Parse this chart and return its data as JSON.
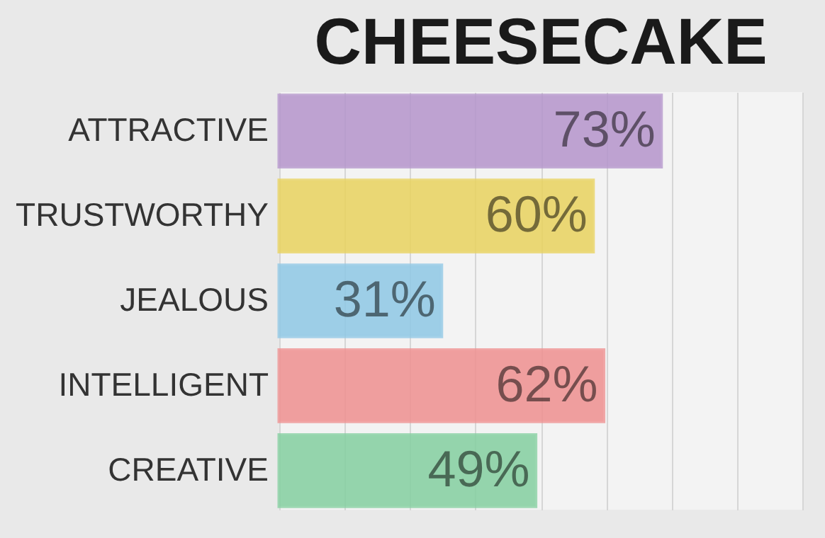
{
  "chart_data": {
    "type": "bar",
    "orientation": "horizontal",
    "title": "CHEESECAKE",
    "categories": [
      "ATTRACTIVE",
      "TRUSTWORTHY",
      "JEALOUS",
      "INTELLIGENT",
      "CREATIVE"
    ],
    "values": [
      73,
      60,
      31,
      62,
      49
    ],
    "value_labels": [
      "73%",
      "60%",
      "31%",
      "62%",
      "49%"
    ],
    "colors": [
      "#b595cc",
      "#e9d35e",
      "#8fc8e6",
      "#ef9090",
      "#84cfa0"
    ],
    "xlim": [
      0,
      100
    ],
    "xticks": [
      {
        "value": 0,
        "label": null
      },
      {
        "value": 12.5,
        "label": null
      },
      {
        "value": 25,
        "label": null
      },
      {
        "value": 37.5,
        "label": null
      },
      {
        "value": 50,
        "label": null
      },
      {
        "value": 62.5,
        "label": null
      },
      {
        "value": 75,
        "label": null
      },
      {
        "value": 87.5,
        "label": null
      },
      {
        "value": 100,
        "label": null
      }
    ],
    "grid": "x",
    "tick_labels": "y"
  }
}
